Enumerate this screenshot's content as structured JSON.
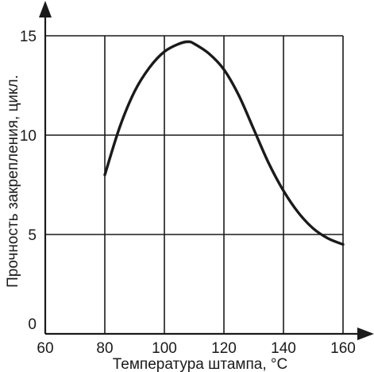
{
  "chart_data": {
    "type": "line",
    "title": "",
    "xlabel": "Температура штампа, °С",
    "ylabel": "Прочность закрепления, цикл.",
    "xlim": [
      60,
      160
    ],
    "ylim": [
      0,
      15
    ],
    "x_ticks": [
      "60",
      "80",
      "100",
      "120",
      "140",
      "160"
    ],
    "y_ticks": [
      "0",
      "5",
      "10",
      "15"
    ],
    "grid": true,
    "series": [
      {
        "x": [
          80,
          85,
          90,
          95,
          100,
          105,
          108,
          110,
          115,
          120,
          125,
          130,
          135,
          140,
          145,
          150,
          155,
          160
        ],
        "y": [
          8.0,
          10.4,
          12.2,
          13.4,
          14.2,
          14.6,
          14.7,
          14.6,
          14.1,
          13.3,
          12.0,
          10.3,
          8.6,
          7.2,
          6.1,
          5.3,
          4.8,
          4.5
        ]
      }
    ],
    "colors": {
      "line": "#1a1a1a",
      "grid": "#1a1a1a",
      "axis": "#1a1a1a"
    }
  }
}
